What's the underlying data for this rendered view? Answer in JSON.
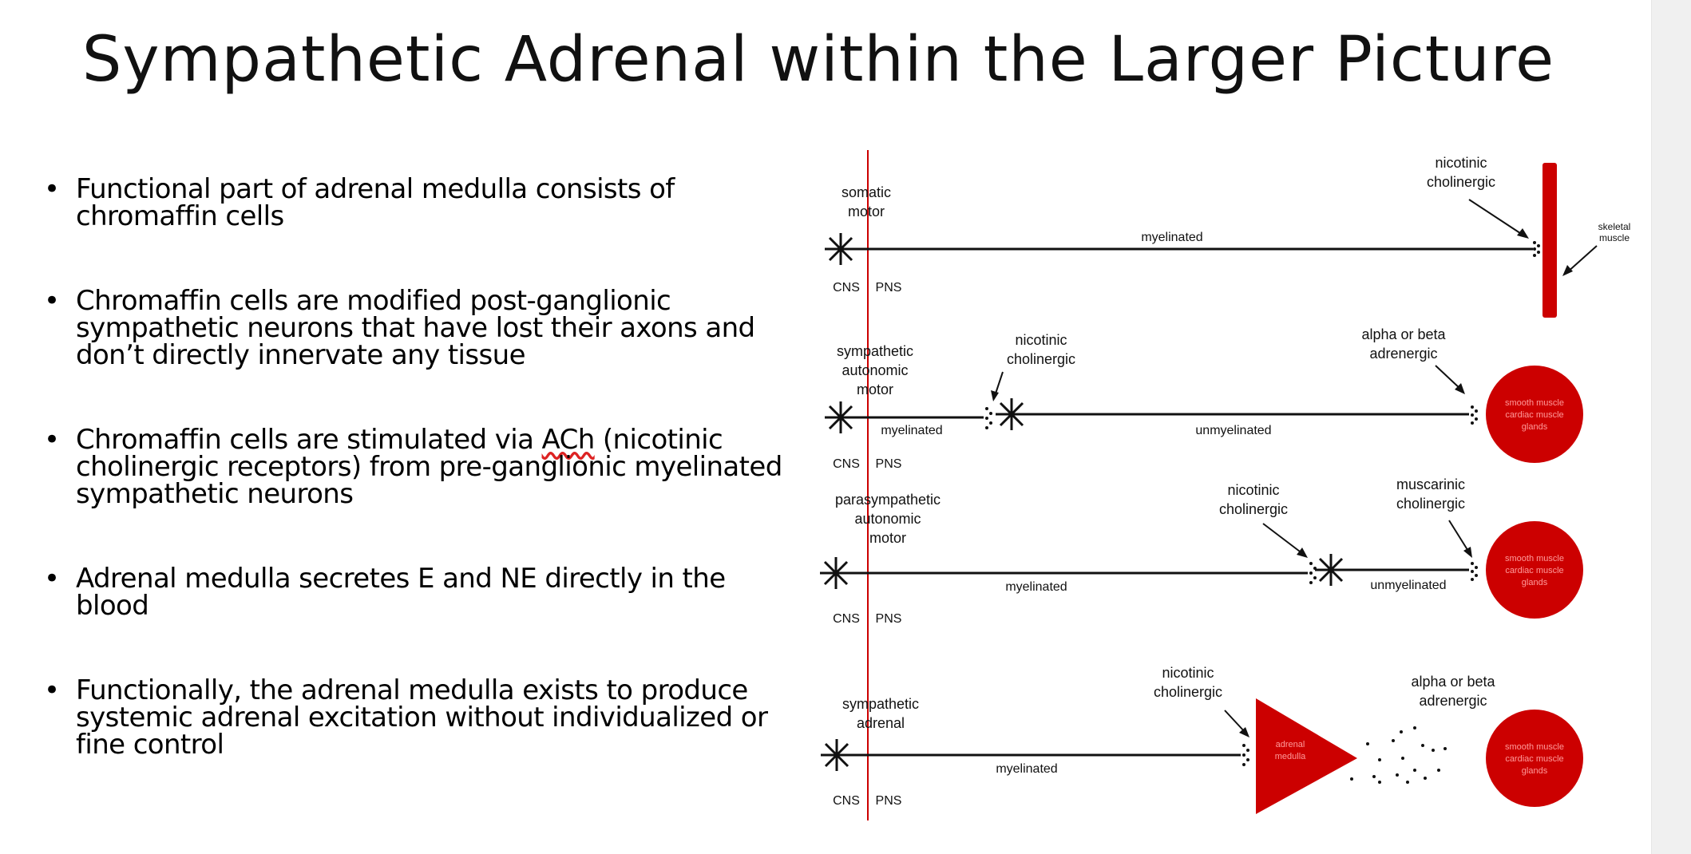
{
  "title": "Sympathetic Adrenal within the Larger Picture",
  "bullets": [
    {
      "text": "Functional part of adrenal medulla consists of chromaffin cells"
    },
    {
      "text": "Chromaffin cells are modified post-ganglionic sympathetic neurons that have lost their axons and don’t directly innervate any tissue"
    },
    {
      "pre": "Chromaffin cells are stimulated via ",
      "flagged": "ACh",
      "post": " (nicotinic cholinergic receptors) from pre-ganglionic myelinated sympathetic neurons"
    },
    {
      "text": "Adrenal medulla secretes E and NE directly in the blood"
    },
    {
      "text": "Functionally, the adrenal medulla exists to produce systemic adrenal excitation without individualized or fine control"
    }
  ],
  "diagram": {
    "cns": "CNS",
    "pns": "PNS",
    "rows": [
      {
        "label": [
          "somatic",
          "motor"
        ],
        "receptor1": [
          "nicotinic",
          "cholinergic"
        ],
        "segment1": "myelinated",
        "target": [
          "skeletal",
          "muscle"
        ]
      },
      {
        "label": [
          "sympathetic",
          "autonomic",
          "motor"
        ],
        "receptor1": [
          "nicotinic",
          "cholinergic"
        ],
        "receptor2": [
          "alpha or beta",
          "adrenergic"
        ],
        "segment1": "myelinated",
        "segment2": "unmyelinated",
        "target": [
          "smooth muscle",
          "cardiac muscle",
          "glands"
        ]
      },
      {
        "label": [
          "parasympathetic",
          "autonomic",
          "motor"
        ],
        "receptor1": [
          "nicotinic",
          "cholinergic"
        ],
        "receptor2": [
          "muscarinic",
          "cholinergic"
        ],
        "segment1": "myelinated",
        "segment2": "unmyelinated",
        "target": [
          "smooth muscle",
          "cardiac muscle",
          "glands"
        ]
      },
      {
        "label": [
          "sympathetic",
          "adrenal"
        ],
        "receptor1": [
          "nicotinic",
          "cholinergic"
        ],
        "receptor2": [
          "alpha or beta",
          "adrenergic"
        ],
        "segment1": "myelinated",
        "organ": [
          "adrenal",
          "medulla"
        ],
        "target": [
          "smooth muscle",
          "cardiac muscle",
          "glands"
        ]
      }
    ],
    "colors": {
      "accent": "#cc0000",
      "line": "#111111"
    }
  }
}
